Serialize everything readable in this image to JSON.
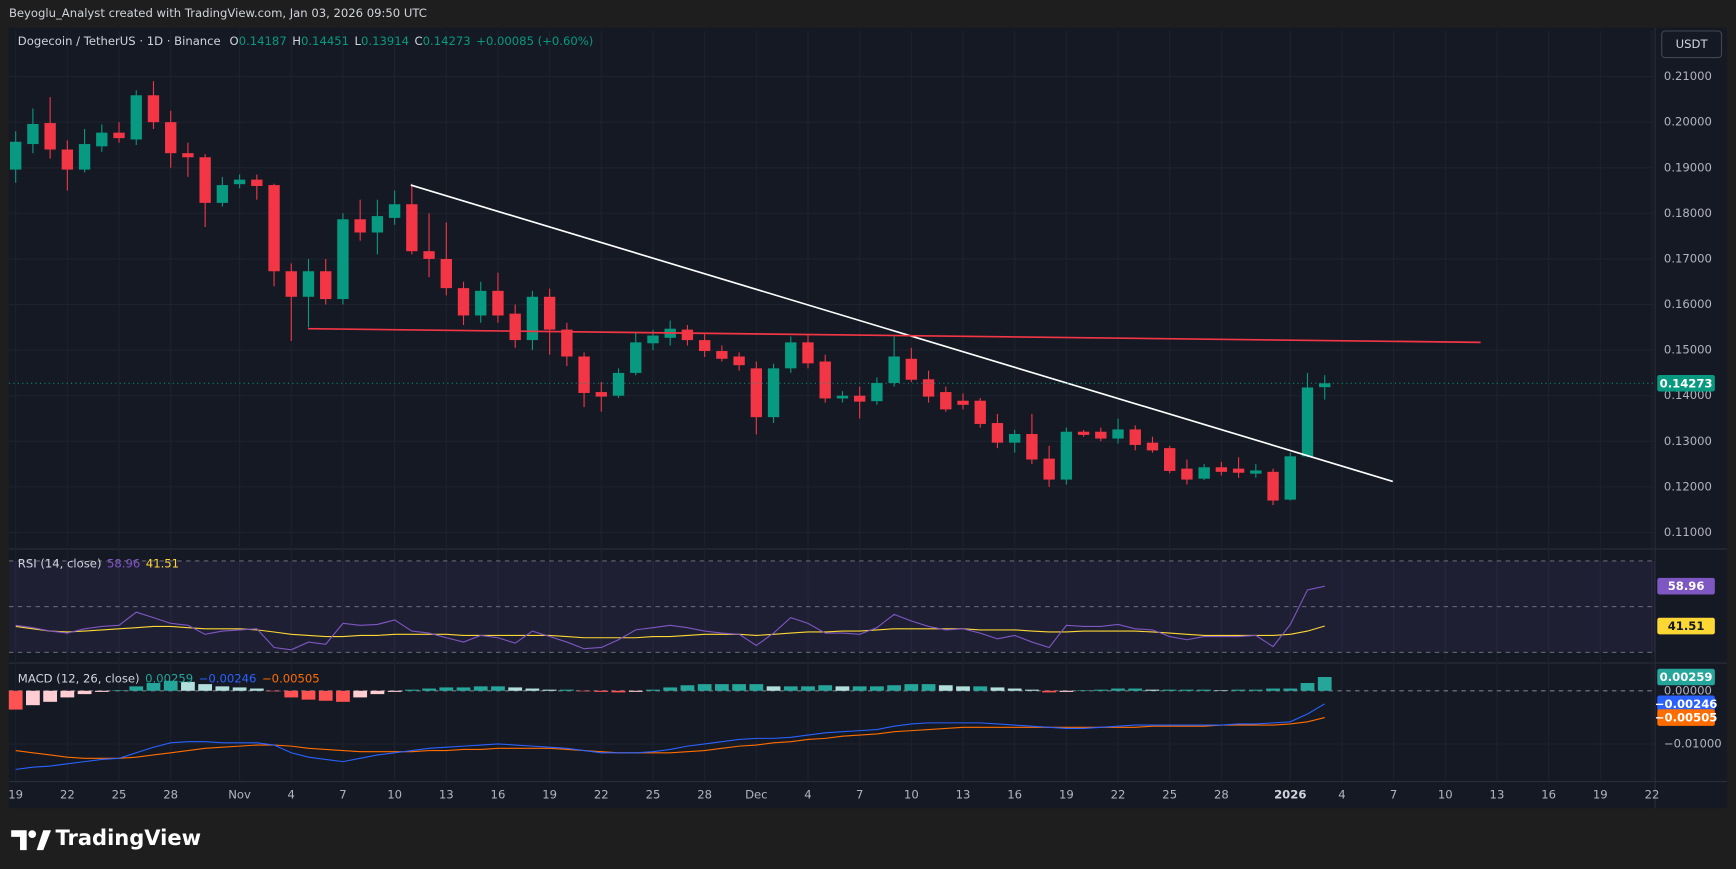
{
  "watermark": "Beyoglu_Analyst created with TradingView.com, Jan 03, 2026 09:50 UTC",
  "brand": "TradingView",
  "chart_data": {
    "type": "candlestick",
    "title": "Dogecoin / TetherUS · 1D · Binance",
    "currency": "USDT",
    "ohlc_labels": [
      "O",
      "H",
      "L",
      "C"
    ],
    "change_label": "+0.00085 (+0.60%)",
    "x": [
      0,
      1,
      2,
      3,
      4,
      5,
      6,
      7,
      8,
      9,
      10,
      11,
      12,
      13,
      14,
      15,
      16,
      17,
      18,
      19,
      20,
      21,
      22,
      23,
      24,
      25,
      26,
      27,
      28,
      29,
      30,
      31,
      32,
      33,
      34,
      35,
      36,
      37,
      38,
      39,
      40,
      41,
      42,
      43,
      44,
      45,
      46,
      47,
      48,
      49,
      50,
      51,
      52,
      53,
      54,
      55,
      56,
      57,
      58,
      59,
      60,
      61,
      62,
      63,
      64,
      65,
      66,
      67,
      68,
      69,
      70,
      71,
      72,
      73,
      74,
      75,
      76
    ],
    "xlim": [
      -0.39,
      95.18
    ],
    "xticks": [
      {
        "value": 0,
        "label": "19"
      },
      {
        "value": 3,
        "label": "22"
      },
      {
        "value": 6,
        "label": "25"
      },
      {
        "value": 9,
        "label": "28"
      },
      {
        "value": 13,
        "label": "Nov"
      },
      {
        "value": 16,
        "label": "4"
      },
      {
        "value": 19,
        "label": "7"
      },
      {
        "value": 22,
        "label": "10"
      },
      {
        "value": 25,
        "label": "13"
      },
      {
        "value": 28,
        "label": "16"
      },
      {
        "value": 31,
        "label": "19"
      },
      {
        "value": 34,
        "label": "22"
      },
      {
        "value": 37,
        "label": "25"
      },
      {
        "value": 40,
        "label": "28"
      },
      {
        "value": 43,
        "label": "Dec"
      },
      {
        "value": 46,
        "label": "4"
      },
      {
        "value": 49,
        "label": "7"
      },
      {
        "value": 52,
        "label": "10"
      },
      {
        "value": 55,
        "label": "13"
      },
      {
        "value": 58,
        "label": "16"
      },
      {
        "value": 61,
        "label": "19"
      },
      {
        "value": 64,
        "label": "22"
      },
      {
        "value": 67,
        "label": "25"
      },
      {
        "value": 70,
        "label": "28"
      },
      {
        "value": 74,
        "label": "2026"
      },
      {
        "value": 77,
        "label": "4"
      },
      {
        "value": 80,
        "label": "7"
      },
      {
        "value": 83,
        "label": "10"
      },
      {
        "value": 86,
        "label": "13"
      },
      {
        "value": 89,
        "label": "16"
      },
      {
        "value": 92,
        "label": "19"
      },
      {
        "value": 95,
        "label": "22"
      }
    ],
    "open": [
      0.1896,
      0.1952,
      0.1998,
      0.194,
      0.1896,
      0.1947,
      0.1977,
      0.1962,
      0.2059,
      0.2,
      0.1932,
      0.1923,
      0.1823,
      0.1864,
      0.1874,
      0.1862,
      0.1673,
      0.1617,
      0.1673,
      0.1612,
      0.1787,
      0.1758,
      0.179,
      0.182,
      0.1717,
      0.17,
      0.1636,
      0.1576,
      0.163,
      0.158,
      0.1522,
      0.1617,
      0.1545,
      0.1486,
      0.1408,
      0.14,
      0.145,
      0.1515,
      0.1527,
      0.1545,
      0.1522,
      0.1498,
      0.1486,
      0.146,
      0.1353,
      0.146,
      0.1517,
      0.1475,
      0.1394,
      0.14,
      0.1388,
      0.1428,
      0.1481,
      0.1436,
      0.1408,
      0.1389,
      0.1389,
      0.134,
      0.1297,
      0.1316,
      0.1262,
      0.1216,
      0.1321,
      0.1321,
      0.1306,
      0.1326,
      0.1297,
      0.1285,
      0.124,
      0.1218,
      0.1243,
      0.124,
      0.1229,
      0.1233,
      0.1172,
      0.1267,
      0.14187
    ],
    "high": [
      0.198,
      0.203,
      0.2055,
      0.196,
      0.1985,
      0.1995,
      0.2,
      0.207,
      0.209,
      0.2025,
      0.1955,
      0.193,
      0.188,
      0.1885,
      0.1885,
      0.1865,
      0.169,
      0.17,
      0.17,
      0.18,
      0.183,
      0.183,
      0.185,
      0.1865,
      0.18,
      0.178,
      0.165,
      0.165,
      0.167,
      0.16,
      0.163,
      0.1635,
      0.156,
      0.1495,
      0.143,
      0.146,
      0.154,
      0.1545,
      0.1565,
      0.1555,
      0.1535,
      0.151,
      0.1495,
      0.1475,
      0.147,
      0.153,
      0.1535,
      0.149,
      0.141,
      0.142,
      0.144,
      0.153,
      0.1505,
      0.1455,
      0.142,
      0.1405,
      0.1395,
      0.136,
      0.1325,
      0.136,
      0.129,
      0.133,
      0.1325,
      0.133,
      0.135,
      0.1335,
      0.131,
      0.129,
      0.126,
      0.125,
      0.1255,
      0.1265,
      0.125,
      0.124,
      0.1275,
      0.145,
      0.14451
    ],
    "low": [
      0.1867,
      0.1932,
      0.192,
      0.185,
      0.189,
      0.1935,
      0.1955,
      0.195,
      0.1985,
      0.19,
      0.188,
      0.177,
      0.1815,
      0.1855,
      0.183,
      0.164,
      0.152,
      0.155,
      0.16,
      0.16,
      0.174,
      0.171,
      0.1775,
      0.171,
      0.166,
      0.162,
      0.1555,
      0.156,
      0.156,
      0.1505,
      0.15,
      0.149,
      0.1465,
      0.1375,
      0.1365,
      0.1395,
      0.1445,
      0.15,
      0.151,
      0.151,
      0.1485,
      0.1475,
      0.1455,
      0.1315,
      0.134,
      0.145,
      0.146,
      0.1385,
      0.1385,
      0.135,
      0.138,
      0.142,
      0.143,
      0.1385,
      0.1365,
      0.137,
      0.133,
      0.1285,
      0.1275,
      0.125,
      0.12,
      0.1205,
      0.131,
      0.13,
      0.1295,
      0.128,
      0.1275,
      0.123,
      0.1205,
      0.1215,
      0.1225,
      0.122,
      0.122,
      0.116,
      0.117,
      0.1265,
      0.13914
    ],
    "close": [
      0.1957,
      0.1996,
      0.194,
      0.1896,
      0.1952,
      0.1977,
      0.1965,
      0.2059,
      0.2,
      0.1932,
      0.1923,
      0.1823,
      0.1862,
      0.1874,
      0.186,
      0.1673,
      0.1617,
      0.1673,
      0.1612,
      0.1787,
      0.1758,
      0.1794,
      0.182,
      0.1717,
      0.17,
      0.1636,
      0.1576,
      0.163,
      0.1576,
      0.1522,
      0.1617,
      0.1545,
      0.1486,
      0.1406,
      0.1398,
      0.145,
      0.1517,
      0.1532,
      0.1547,
      0.1522,
      0.1498,
      0.1481,
      0.1467,
      0.1353,
      0.146,
      0.1517,
      0.1471,
      0.1394,
      0.14,
      0.1387,
      0.1428,
      0.1486,
      0.1435,
      0.1398,
      0.137,
      0.138,
      0.1338,
      0.1297,
      0.1316,
      0.126,
      0.1216,
      0.1321,
      0.1314,
      0.1306,
      0.1326,
      0.1292,
      0.128,
      0.1235,
      0.1216,
      0.1243,
      0.1233,
      0.1231,
      0.1236,
      0.117,
      0.1267,
      0.1418,
      0.14273
    ],
    "up_color": "#089981",
    "down_color": "#f23645",
    "ylim": [
      0.1066,
      0.22
    ],
    "yticks": [
      {
        "value": 0.11,
        "label": "0.11000"
      },
      {
        "value": 0.12,
        "label": "0.12000"
      },
      {
        "value": 0.13,
        "label": "0.13000"
      },
      {
        "value": 0.14,
        "label": "0.14000"
      },
      {
        "value": 0.15,
        "label": "0.15000"
      },
      {
        "value": 0.16,
        "label": "0.16000"
      },
      {
        "value": 0.17,
        "label": "0.17000"
      },
      {
        "value": 0.18,
        "label": "0.18000"
      },
      {
        "value": 0.19,
        "label": "0.19000"
      },
      {
        "value": 0.2,
        "label": "0.20000"
      },
      {
        "value": 0.21,
        "label": "0.21000"
      }
    ],
    "grid": true,
    "lines": [
      {
        "color": "#ffffff",
        "x": [
          22.94,
          79.95
        ],
        "values": [
          0.1862,
          0.1212
        ]
      },
      {
        "color": "#f23645",
        "x": [
          16.97,
          85.05
        ],
        "values": [
          0.1547,
          0.1517
        ]
      }
    ],
    "rsi": {
      "title": "RSI (14, close)",
      "color": "#7e57c2",
      "ma_color": "#fdd835",
      "ylim": [
        26.25,
        74.72
      ],
      "levels": [
        70,
        50,
        30
      ],
      "values": [
        41.8,
        40.8,
        39.3,
        38.4,
        40.3,
        41.3,
        41.8,
        47.6,
        45.2,
        42.7,
        41.8,
        37.9,
        39.3,
        39.8,
        40.3,
        32.1,
        31.1,
        34.5,
        33.5,
        42.7,
        41.8,
        42.2,
        44.2,
        39.3,
        38.4,
        36.4,
        34.5,
        37.4,
        36.4,
        34.0,
        39.3,
        36.9,
        34.5,
        31.6,
        32.1,
        35.5,
        39.8,
        40.8,
        41.8,
        40.8,
        39.3,
        38.4,
        37.9,
        33.0,
        38.4,
        45.2,
        42.7,
        38.4,
        38.4,
        37.9,
        40.8,
        46.6,
        43.7,
        41.3,
        39.8,
        40.3,
        38.4,
        35.9,
        37.4,
        34.5,
        32.1,
        41.8,
        41.3,
        41.3,
        42.2,
        40.3,
        39.8,
        36.9,
        35.5,
        36.9,
        36.9,
        36.9,
        37.4,
        32.5,
        42.2,
        57.3,
        58.96
      ],
      "ma": [
        41.3,
        40.3,
        39.3,
        38.9,
        39.3,
        39.8,
        40.3,
        40.8,
        41.3,
        41.3,
        40.8,
        40.3,
        40.3,
        40.3,
        39.8,
        38.9,
        37.9,
        37.4,
        36.9,
        36.9,
        37.4,
        37.4,
        37.9,
        37.9,
        37.9,
        37.9,
        37.4,
        37.4,
        37.4,
        37.4,
        37.4,
        37.4,
        36.9,
        36.4,
        36.4,
        36.4,
        36.4,
        36.9,
        36.9,
        37.4,
        37.9,
        37.9,
        37.9,
        37.4,
        37.9,
        38.4,
        38.9,
        38.9,
        39.3,
        39.3,
        39.8,
        40.3,
        40.3,
        40.3,
        40.3,
        40.3,
        39.8,
        39.8,
        39.8,
        39.3,
        38.9,
        38.9,
        39.3,
        39.3,
        39.3,
        39.3,
        38.9,
        38.4,
        37.9,
        37.4,
        37.4,
        37.4,
        37.4,
        37.4,
        37.9,
        39.3,
        41.51
      ]
    },
    "macd": {
      "title": "MACD (12, 26, close)",
      "macd_color": "#2962ff",
      "signal_color": "#ff6d00",
      "ylim": [
        -0.016875,
        0.005
      ],
      "yticks": [
        {
          "value": 0,
          "label": "0.00000"
        },
        {
          "value": -0.01,
          "label": "−0.01000"
        }
      ],
      "last_labels": [
        "0.00259",
        "−0.00246",
        "−0.00505"
      ],
      "histogram": [
        -0.00354,
        -0.00271,
        -0.00208,
        -0.00125,
        -0.00063,
        -0.00021,
        0.0001,
        0.00083,
        0.00146,
        0.00188,
        0.00167,
        0.00125,
        0.00083,
        0.00063,
        0.00042,
        -0.0001,
        -0.00125,
        -0.00167,
        -0.00188,
        -0.00208,
        -0.00125,
        -0.00063,
        -0.00021,
        0.00021,
        0.00042,
        0.00063,
        0.00063,
        0.00083,
        0.00083,
        0.00063,
        0.00042,
        0.00021,
        0.00021,
        -0.0001,
        -0.00021,
        -0.0003,
        -0.0002,
        0.00021,
        0.00063,
        0.00104,
        0.00125,
        0.00125,
        0.00125,
        0.00125,
        0.00083,
        0.00083,
        0.00083,
        0.00104,
        0.00083,
        0.00083,
        0.00083,
        0.00104,
        0.00125,
        0.00125,
        0.00104,
        0.00083,
        0.00083,
        0.00063,
        0.00042,
        0.00021,
        -0.0003,
        -0.00021,
        0.0001,
        0.00021,
        0.00042,
        0.00042,
        0.00021,
        0.00021,
        0.00021,
        0.00021,
        0.0001,
        0.00021,
        0.00021,
        0.00042,
        0.00042,
        0.00146,
        0.00259
      ],
      "macd": [
        -0.01479,
        -0.01438,
        -0.01417,
        -0.01375,
        -0.01333,
        -0.01292,
        -0.01271,
        -0.01167,
        -0.01063,
        -0.00979,
        -0.00958,
        -0.00958,
        -0.00979,
        -0.00979,
        -0.00979,
        -0.01021,
        -0.01167,
        -0.0125,
        -0.01292,
        -0.01333,
        -0.01271,
        -0.01208,
        -0.01167,
        -0.01125,
        -0.01083,
        -0.01063,
        -0.01042,
        -0.01021,
        -0.01,
        -0.01021,
        -0.01042,
        -0.01063,
        -0.01083,
        -0.01125,
        -0.01167,
        -0.01167,
        -0.01167,
        -0.01146,
        -0.01104,
        -0.01042,
        -0.01,
        -0.00958,
        -0.00917,
        -0.00896,
        -0.00896,
        -0.00875,
        -0.00833,
        -0.00792,
        -0.00771,
        -0.0075,
        -0.00729,
        -0.00667,
        -0.00625,
        -0.00604,
        -0.00604,
        -0.00604,
        -0.00604,
        -0.00625,
        -0.00646,
        -0.00667,
        -0.00688,
        -0.00708,
        -0.00708,
        -0.00688,
        -0.00667,
        -0.00646,
        -0.00646,
        -0.00646,
        -0.00646,
        -0.00646,
        -0.00646,
        -0.00625,
        -0.00625,
        -0.00604,
        -0.00583,
        -0.00438,
        -0.00246
      ],
      "signal": [
        -0.01125,
        -0.01167,
        -0.01208,
        -0.0125,
        -0.01271,
        -0.01271,
        -0.01271,
        -0.0125,
        -0.01208,
        -0.01167,
        -0.01125,
        -0.01083,
        -0.01063,
        -0.01042,
        -0.01021,
        -0.01021,
        -0.01042,
        -0.01083,
        -0.01104,
        -0.01125,
        -0.01146,
        -0.01146,
        -0.01146,
        -0.01146,
        -0.01125,
        -0.01125,
        -0.01104,
        -0.01104,
        -0.01083,
        -0.01083,
        -0.01083,
        -0.01083,
        -0.01104,
        -0.01125,
        -0.01146,
        -0.01167,
        -0.01167,
        -0.01167,
        -0.01167,
        -0.01146,
        -0.01125,
        -0.01083,
        -0.01042,
        -0.01021,
        -0.00979,
        -0.00958,
        -0.00917,
        -0.00896,
        -0.00854,
        -0.00833,
        -0.00813,
        -0.00771,
        -0.0075,
        -0.00729,
        -0.00708,
        -0.00688,
        -0.00688,
        -0.00688,
        -0.00688,
        -0.00688,
        -0.00688,
        -0.00688,
        -0.00688,
        -0.00688,
        -0.00688,
        -0.00688,
        -0.00667,
        -0.00667,
        -0.00667,
        -0.00667,
        -0.00646,
        -0.00646,
        -0.00646,
        -0.00646,
        -0.00625,
        -0.00583,
        -0.00505
      ]
    }
  }
}
